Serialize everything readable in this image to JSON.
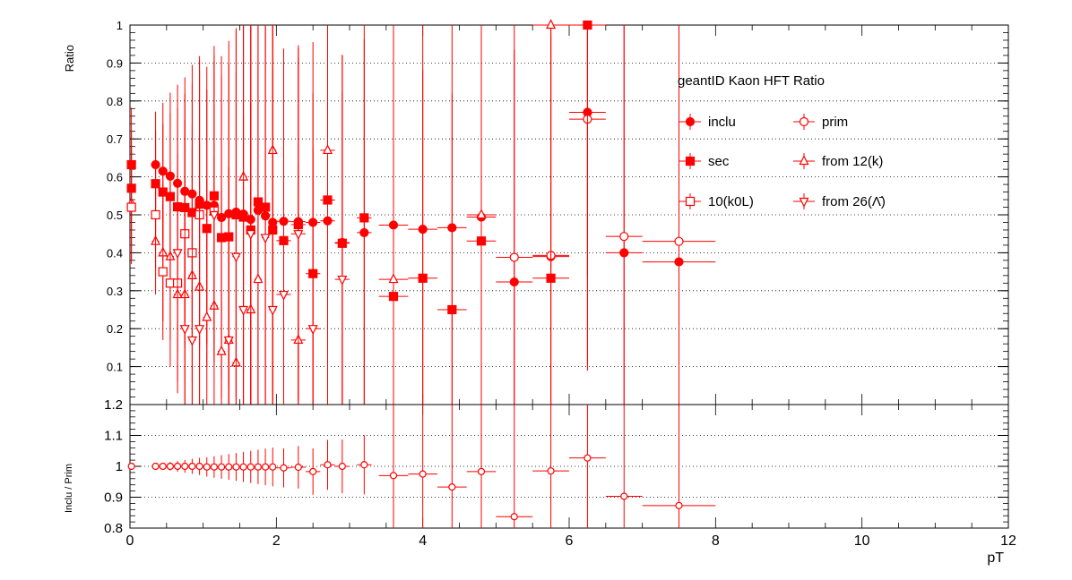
{
  "chart_data": [
    {
      "type": "scatter",
      "title": "geantID Kaon HFT Ratio",
      "ylabel": "Ratio",
      "xlabel": "",
      "xlim": [
        0,
        12
      ],
      "ylim": [
        0,
        1
      ],
      "yticks": [
        "0.1",
        "0.2",
        "0.3",
        "0.4",
        "0.5",
        "0.6",
        "0.7",
        "0.8",
        "0.9",
        "1"
      ],
      "grid": "horizontal dotted",
      "legend_position": "top-right",
      "colors": {
        "series": "#ff0000",
        "axis": "#000000",
        "grid": "#000000"
      },
      "series": [
        {
          "name": "inclu",
          "marker": "filled-circle",
          "x": [
            0.35,
            0.45,
            0.55,
            0.65,
            0.75,
            0.85,
            0.95,
            1.05,
            1.15,
            1.25,
            1.35,
            1.45,
            1.55,
            1.65,
            1.75,
            1.85,
            1.95,
            2.1,
            2.3,
            2.5,
            2.7,
            2.9,
            3.2,
            3.6,
            4.0,
            4.4,
            4.8,
            5.25,
            5.75,
            6.25,
            6.75,
            7.5
          ],
          "y": [
            0.632,
            0.615,
            0.602,
            0.583,
            0.562,
            0.555,
            0.538,
            0.525,
            0.525,
            0.493,
            0.503,
            0.507,
            0.502,
            0.488,
            0.512,
            0.497,
            0.48,
            0.483,
            0.482,
            0.48,
            0.484,
            0.427,
            0.453,
            0.473,
            0.462,
            0.466,
            0.494,
            0.323,
            0.39,
            0.77,
            0.4,
            0.376
          ]
        },
        {
          "name": "prim",
          "marker": "open-circle",
          "x": [
            5.25,
            5.75,
            6.25,
            6.75,
            7.5
          ],
          "y": [
            0.388,
            0.393,
            0.752,
            0.443,
            0.43
          ]
        },
        {
          "name": "sec",
          "marker": "filled-square",
          "x": [
            0.02,
            0.02,
            0.35,
            0.45,
            0.55,
            0.65,
            0.75,
            0.85,
            0.95,
            1.05,
            1.15,
            1.25,
            1.35,
            1.45,
            1.55,
            1.65,
            1.75,
            1.85,
            1.95,
            2.1,
            2.3,
            2.5,
            2.7,
            2.9,
            3.2,
            3.6,
            4.0,
            4.4,
            4.8,
            5.75,
            6.25
          ],
          "y": [
            0.632,
            0.57,
            0.582,
            0.56,
            0.548,
            0.521,
            0.519,
            0.506,
            0.528,
            0.464,
            0.55,
            0.44,
            0.442,
            0.5,
            0.494,
            0.46,
            0.534,
            0.52,
            0.46,
            0.432,
            0.474,
            0.345,
            0.539,
            0.425,
            0.492,
            0.285,
            0.333,
            0.25,
            0.431,
            0.333,
            1.0
          ]
        },
        {
          "name": "from 12(k)",
          "marker": "open-triangle-up",
          "x": [
            0.02,
            0.35,
            0.45,
            0.55,
            0.65,
            0.75,
            0.85,
            0.95,
            1.05,
            1.15,
            1.25,
            1.35,
            1.45,
            1.55,
            1.65,
            1.75,
            1.95,
            2.3,
            2.7,
            3.6,
            4.8,
            5.75
          ],
          "y": [
            0.53,
            0.43,
            0.4,
            0.39,
            0.29,
            0.29,
            0.34,
            0.31,
            0.23,
            0.26,
            0.14,
            0.17,
            0.11,
            0.6,
            0.25,
            0.33,
            0.67,
            0.17,
            0.67,
            0.33,
            0.5,
            1.0
          ]
        },
        {
          "name": "10(k0L)",
          "marker": "open-square",
          "x": [
            0.02,
            0.35,
            0.45,
            0.55,
            0.65,
            0.75,
            0.85,
            0.95,
            1.15
          ],
          "y": [
            0.52,
            0.5,
            0.35,
            0.32,
            0.32,
            0.45,
            0.4,
            0.5,
            0.51
          ]
        },
        {
          "name": "from 26(Λ̄)",
          "marker": "open-triangle-down",
          "x": [
            0.65,
            0.75,
            0.85,
            0.95,
            1.15,
            1.35,
            1.45,
            1.55,
            1.65,
            1.85,
            1.95,
            2.1,
            2.3,
            2.5,
            2.9
          ],
          "y": [
            0.4,
            0.2,
            0.17,
            0.2,
            0.5,
            0.17,
            0.39,
            0.25,
            0.45,
            0.44,
            0.25,
            0.29,
            0.45,
            0.2,
            0.33
          ]
        }
      ]
    },
    {
      "type": "scatter",
      "title": "",
      "ylabel": "Inclu / Prim",
      "xlabel": "pT",
      "xlim": [
        0,
        12
      ],
      "ylim": [
        0.8,
        1.2
      ],
      "xticks": [
        "0",
        "2",
        "4",
        "6",
        "8",
        "10",
        "12"
      ],
      "yticks": [
        "0.8",
        "0.9",
        "1",
        "1.1",
        "1.2"
      ],
      "grid": "horizontal dotted",
      "colors": {
        "series": "#ff0000"
      },
      "series": [
        {
          "name": "",
          "marker": "open-circle",
          "x": [
            0.02,
            0.35,
            0.45,
            0.55,
            0.65,
            0.75,
            0.85,
            0.95,
            1.05,
            1.15,
            1.25,
            1.35,
            1.45,
            1.55,
            1.65,
            1.75,
            1.85,
            1.95,
            2.1,
            2.3,
            2.5,
            2.7,
            2.9,
            3.2,
            3.6,
            4.0,
            4.4,
            4.8,
            5.25,
            5.75,
            6.25,
            6.75,
            7.5
          ],
          "y": [
            1.0,
            1.0,
            1.0,
            1.0,
            1.0,
            1.0,
            1.0,
            1.0,
            0.998,
            0.998,
            0.998,
            0.998,
            0.998,
            0.998,
            0.998,
            0.998,
            0.998,
            0.998,
            0.995,
            0.997,
            0.983,
            1.005,
            1.0,
            1.005,
            0.97,
            0.975,
            0.933,
            0.983,
            0.837,
            0.985,
            1.027,
            0.903,
            0.873
          ]
        }
      ]
    }
  ]
}
